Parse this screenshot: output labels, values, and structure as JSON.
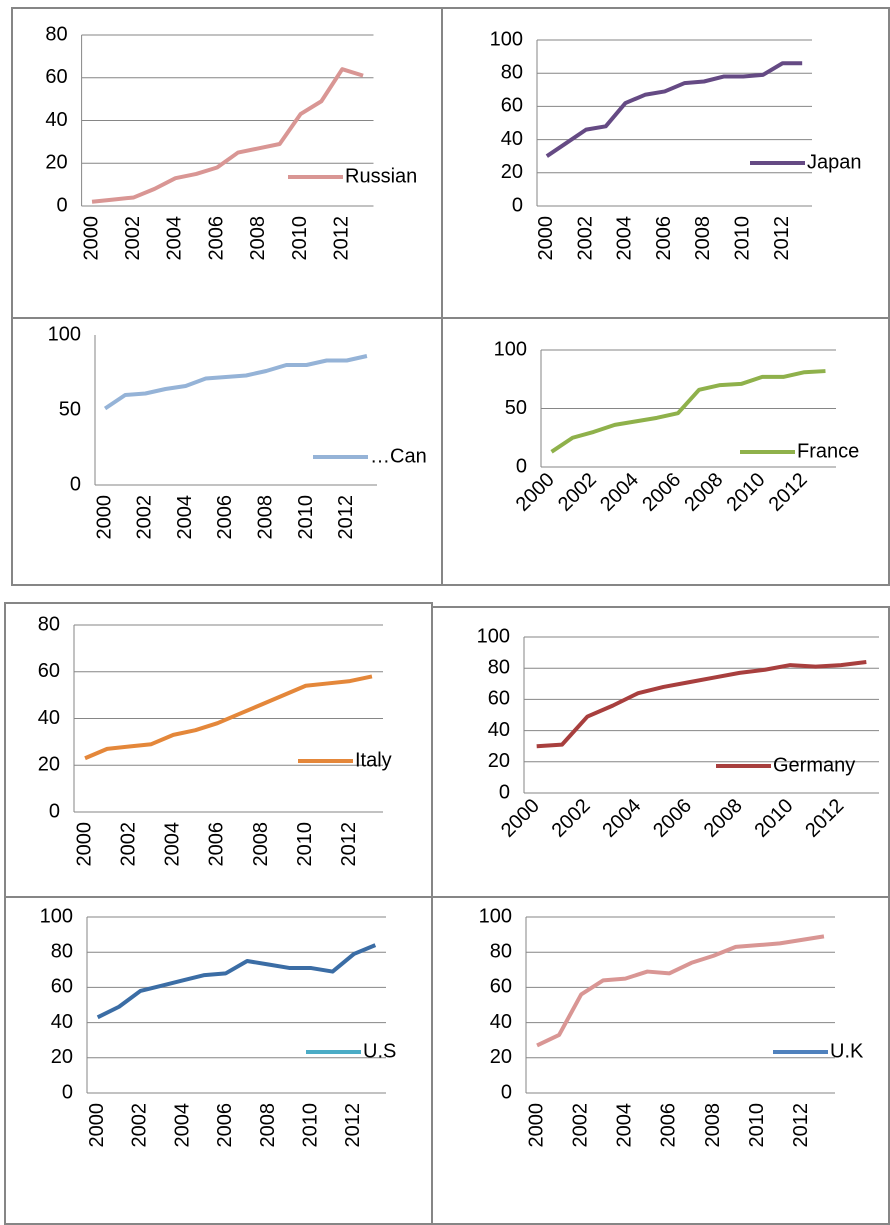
{
  "chart_data": [
    {
      "type": "line",
      "categories": [
        2000,
        null,
        2002,
        null,
        2004,
        null,
        2006,
        null,
        2008,
        null,
        2010,
        null,
        2012,
        null
      ],
      "series": [
        {
          "name": "Russian",
          "color": "#d99694",
          "values": [
            2,
            3,
            4,
            8,
            13,
            15,
            18,
            25,
            27,
            29,
            43,
            49,
            64,
            61
          ]
        }
      ],
      "ylim": [
        0,
        80
      ],
      "yticks": [
        0,
        20,
        40,
        60,
        80
      ],
      "grid": true
    },
    {
      "type": "line",
      "categories": [
        2000,
        null,
        2002,
        null,
        2004,
        null,
        2006,
        null,
        2008,
        null,
        2010,
        null,
        2012,
        null
      ],
      "series": [
        {
          "name": "Japan",
          "color": "#654a84",
          "values": [
            30,
            38,
            46,
            48,
            62,
            67,
            69,
            74,
            75,
            78,
            78,
            79,
            86,
            86
          ]
        }
      ],
      "ylim": [
        0,
        100
      ],
      "yticks": [
        0,
        20,
        40,
        60,
        80,
        100
      ],
      "grid": true
    },
    {
      "type": "line",
      "categories": [
        2000,
        null,
        2002,
        null,
        2004,
        null,
        2006,
        null,
        2008,
        null,
        2010,
        null,
        2012,
        null
      ],
      "series": [
        {
          "name": "…Can",
          "color": "#95b3d7",
          "values": [
            51,
            60,
            61,
            64,
            66,
            71,
            72,
            73,
            76,
            80,
            80,
            83,
            83,
            86
          ]
        }
      ],
      "ylim": [
        0,
        100
      ],
      "yticks": [
        0,
        50,
        100
      ],
      "grid": false
    },
    {
      "type": "line",
      "categories": [
        2000,
        null,
        2002,
        null,
        2004,
        null,
        2006,
        null,
        2008,
        null,
        2010,
        null,
        2012,
        null
      ],
      "series": [
        {
          "name": "France",
          "color": "#8fb14b",
          "values": [
            13,
            25,
            30,
            36,
            39,
            42,
            46,
            66,
            70,
            71,
            77,
            77,
            81,
            82
          ]
        }
      ],
      "ylim": [
        0,
        100
      ],
      "yticks": [
        0,
        50,
        100
      ],
      "grid": true
    },
    {
      "type": "line",
      "categories": [
        2000,
        null,
        2002,
        null,
        2004,
        null,
        2006,
        null,
        2008,
        null,
        2010,
        null,
        2012,
        null
      ],
      "series": [
        {
          "name": "Italy",
          "color": "#e4873a",
          "values": [
            23,
            27,
            28,
            29,
            33,
            35,
            38,
            42,
            46,
            50,
            54,
            55,
            56,
            58
          ]
        }
      ],
      "ylim": [
        0,
        80
      ],
      "yticks": [
        0,
        20,
        40,
        60,
        80
      ],
      "grid": true
    },
    {
      "type": "line",
      "categories": [
        2000,
        null,
        2002,
        null,
        2004,
        null,
        2006,
        null,
        2008,
        null,
        2010,
        null,
        2012,
        null
      ],
      "series": [
        {
          "name": "Germany",
          "color": "#a83f3e",
          "values": [
            30,
            31,
            49,
            56,
            64,
            68,
            71,
            74,
            77,
            79,
            82,
            81,
            82,
            84
          ]
        }
      ],
      "ylim": [
        0,
        100
      ],
      "yticks": [
        0,
        20,
        40,
        60,
        80,
        100
      ],
      "grid": true
    },
    {
      "type": "line",
      "categories": [
        2000,
        null,
        2002,
        null,
        2004,
        null,
        2006,
        null,
        2008,
        null,
        2010,
        null,
        2012,
        null
      ],
      "series": [
        {
          "name": "U.S",
          "color": "#3b6da5",
          "legend_color": "#4bacc6",
          "values": [
            43,
            49,
            58,
            61,
            64,
            67,
            68,
            75,
            73,
            71,
            71,
            69,
            79,
            84
          ]
        }
      ],
      "ylim": [
        0,
        100
      ],
      "yticks": [
        0,
        20,
        40,
        60,
        80,
        100
      ],
      "grid": true
    },
    {
      "type": "line",
      "categories": [
        2000,
        null,
        2002,
        null,
        2004,
        null,
        2006,
        null,
        2008,
        null,
        2010,
        null,
        2012,
        null
      ],
      "series": [
        {
          "name": "U.K",
          "color": "#d99694",
          "legend_color": "#4f81bd",
          "values": [
            27,
            33,
            56,
            64,
            65,
            69,
            68,
            74,
            78,
            83,
            84,
            85,
            87,
            89
          ]
        }
      ],
      "ylim": [
        0,
        100
      ],
      "yticks": [
        0,
        20,
        40,
        60,
        80,
        100
      ],
      "grid": true
    }
  ]
}
